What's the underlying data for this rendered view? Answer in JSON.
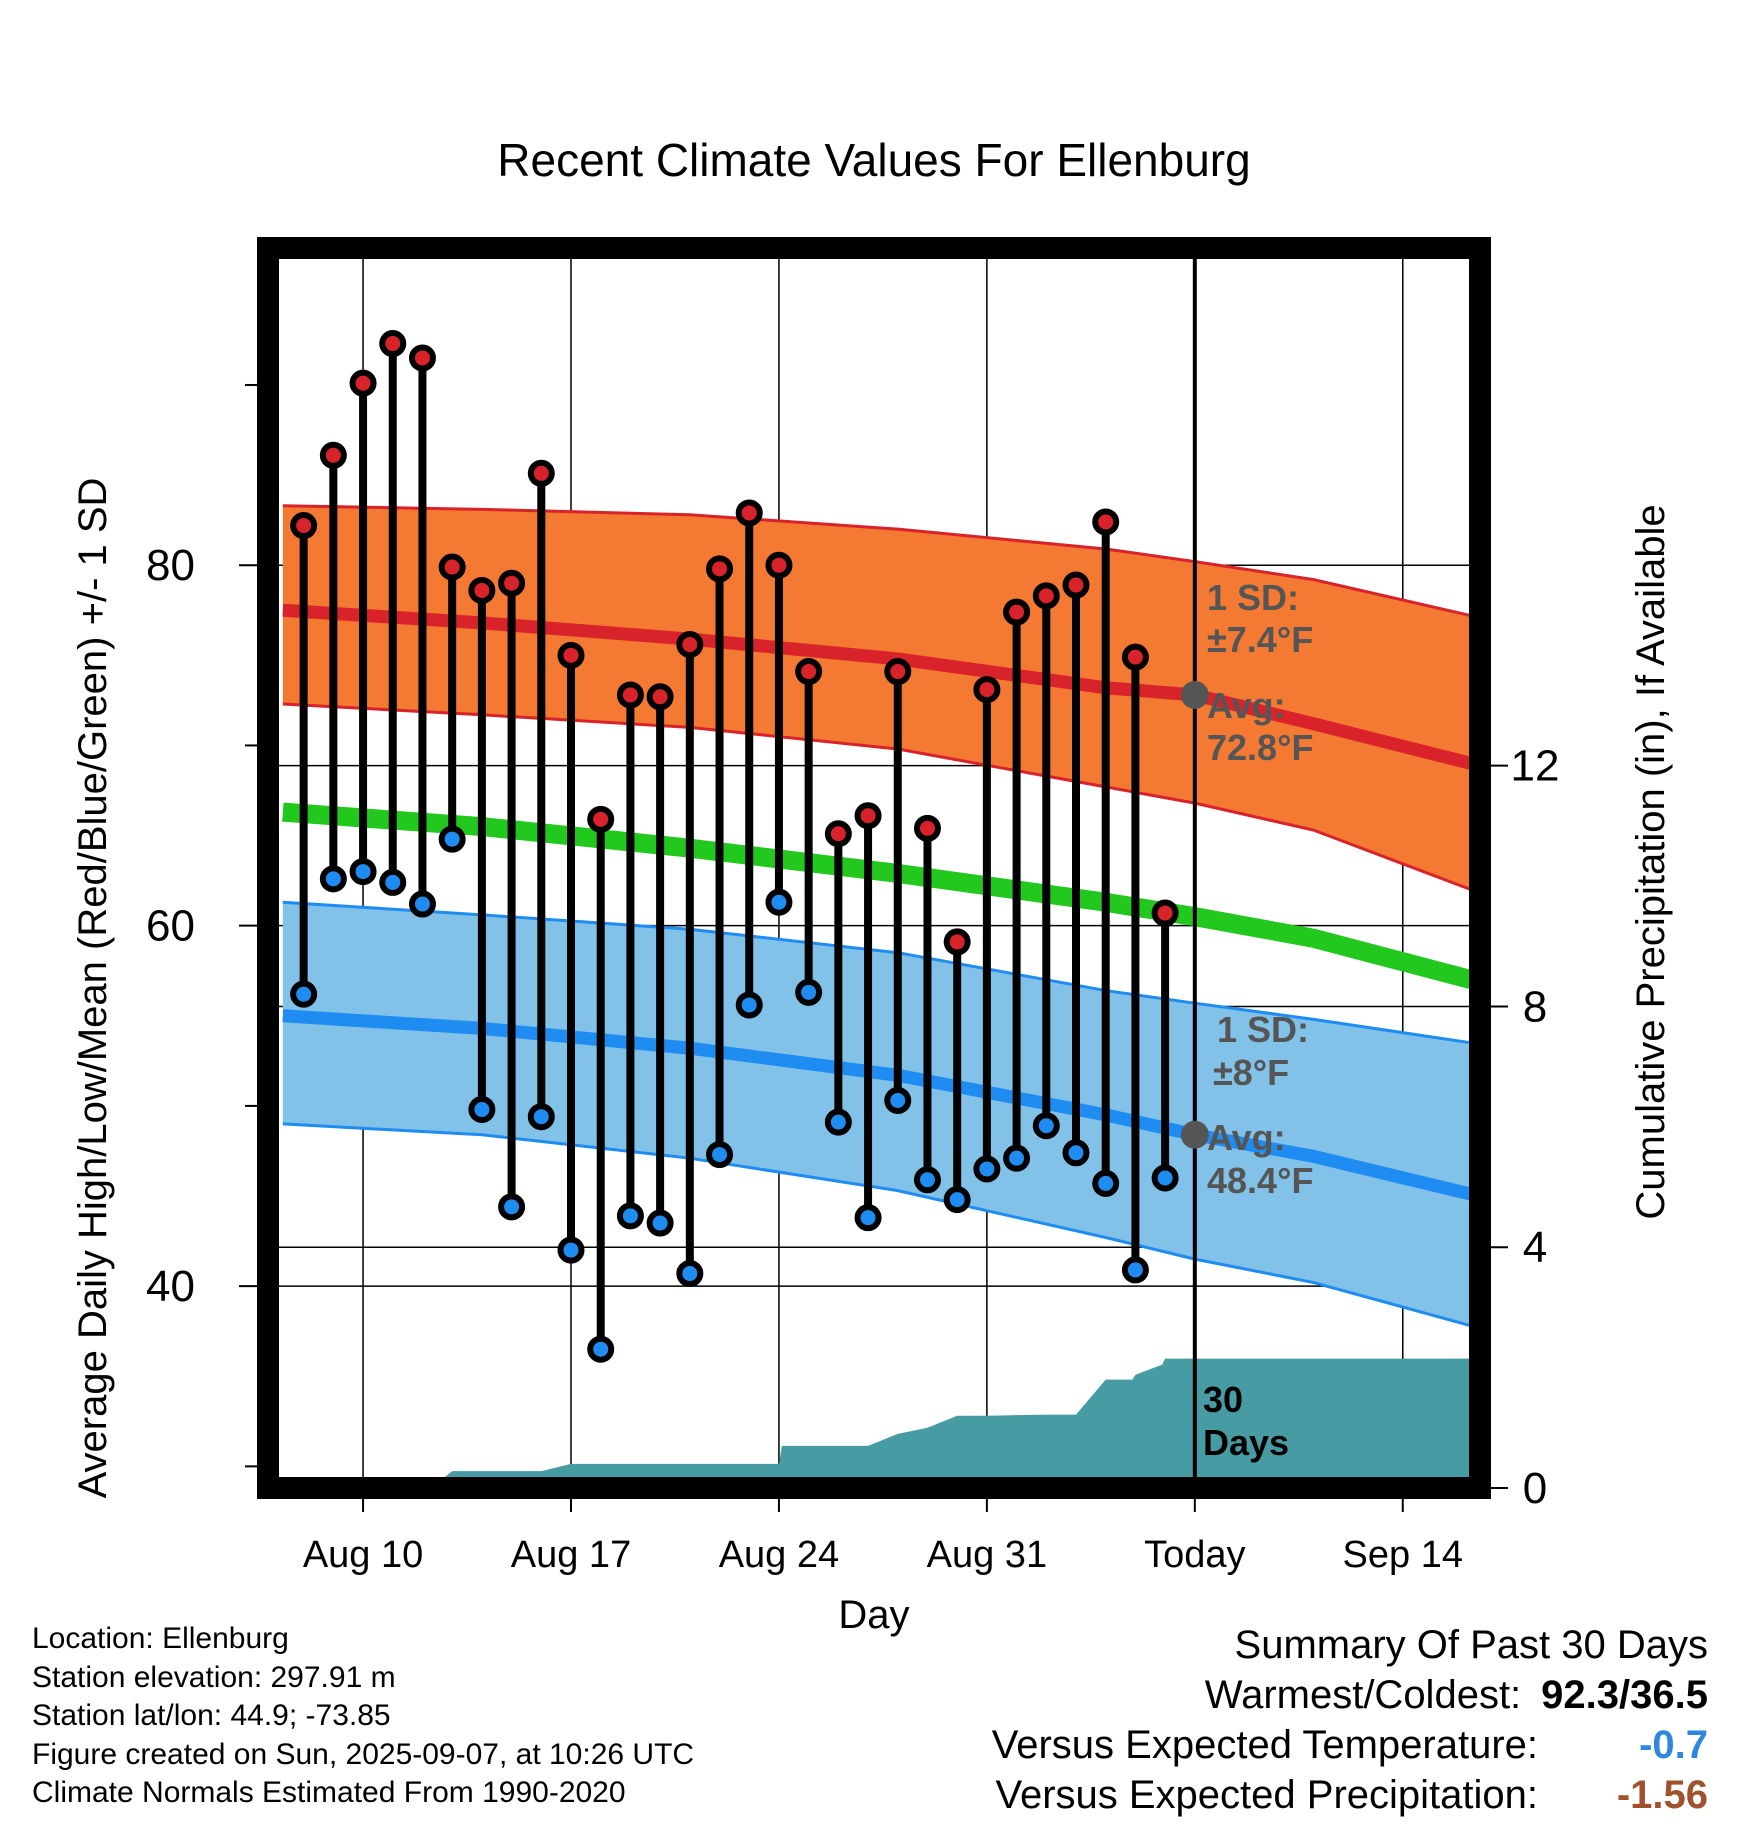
{
  "chart_data": {
    "type": "line",
    "title": "Recent Climate Values For Ellenburg",
    "xlabel": "Day",
    "ylabel": "Average Daily High/Low/Mean (Red/Blue/Green) +/- 1 SD",
    "ylabel_right": "Cumulative Precipitation (in), If Available",
    "x_ticks": [
      "Aug 10",
      "Aug 17",
      "Aug 24",
      "Aug 31",
      "Today",
      "Sep 14"
    ],
    "x_tick_days": [
      10,
      17,
      24,
      31,
      38,
      45
    ],
    "xlim": [
      6.8,
      47.6
    ],
    "ylim": [
      28.8,
      97.6
    ],
    "y_ticks": [
      40,
      60,
      80
    ],
    "ylim_right": [
      0,
      20.6
    ],
    "y_ticks_right": [
      0,
      4,
      8,
      12
    ],
    "today_day": 38,
    "grid": true,
    "normals": {
      "days": [
        7.3,
        14,
        21,
        28,
        35,
        38,
        42,
        47.3
      ],
      "high_avg": [
        77.5,
        76.8,
        75.9,
        74.8,
        73.2,
        72.8,
        71.2,
        69.0
      ],
      "high_upper": [
        83.3,
        83.1,
        82.8,
        82.0,
        80.9,
        80.2,
        79.2,
        77.2
      ],
      "high_lower": [
        72.3,
        71.7,
        71.0,
        69.8,
        67.7,
        66.8,
        65.3,
        62.0
      ],
      "mean": [
        66.3,
        65.5,
        64.3,
        62.9,
        61.3,
        60.5,
        59.3,
        57.0
      ],
      "low_avg": [
        55.0,
        54.3,
        53.2,
        51.7,
        49.5,
        48.4,
        47.2,
        45.1
      ],
      "low_upper": [
        61.3,
        60.6,
        59.8,
        58.5,
        56.4,
        55.7,
        54.8,
        53.5
      ],
      "low_lower": [
        49.0,
        48.4,
        47.1,
        45.3,
        42.7,
        41.5,
        40.2,
        37.8
      ]
    },
    "series": [
      {
        "days": [
          8,
          9,
          10,
          11,
          12,
          13,
          14,
          15,
          16,
          17,
          18,
          19,
          20,
          21,
          22,
          23,
          24,
          25,
          26,
          27,
          28,
          29,
          30,
          31,
          32,
          33,
          34,
          35,
          36,
          37
        ],
        "highs": [
          82.2,
          86.1,
          90.1,
          92.3,
          91.5,
          79.9,
          78.6,
          79.0,
          85.1,
          75.0,
          65.9,
          72.8,
          72.7,
          75.6,
          79.8,
          82.9,
          80.0,
          74.1,
          65.1,
          66.1,
          74.1,
          65.4,
          59.1,
          73.1,
          77.4,
          78.3,
          78.9,
          82.4,
          74.9,
          60.7
        ],
        "lows": [
          56.2,
          62.6,
          63.0,
          62.4,
          61.2,
          64.8,
          49.8,
          44.4,
          49.4,
          42.0,
          36.5,
          43.9,
          43.5,
          40.7,
          47.3,
          55.6,
          61.3,
          56.3,
          49.1,
          43.8,
          50.3,
          45.9,
          44.8,
          46.5,
          47.1,
          48.9,
          47.4,
          45.7,
          40.9,
          46.0
        ]
      }
    ],
    "precip": {
      "days": [
        12.3,
        13,
        16,
        17,
        24,
        24.1,
        27,
        28,
        29,
        30,
        31,
        33,
        34,
        35,
        35.9,
        36,
        36.9,
        37,
        47.3
      ],
      "values": [
        0.0,
        0.28,
        0.28,
        0.4,
        0.4,
        0.7,
        0.7,
        0.9,
        1.0,
        1.2,
        1.2,
        1.22,
        1.22,
        1.8,
        1.8,
        1.88,
        2.05,
        2.15,
        2.15
      ]
    },
    "annotations": {
      "high_sd": "1 SD:",
      "high_sd_value": "±7.4°F",
      "high_avg_label": "Avg:",
      "high_avg_value": "72.8°F",
      "low_sd": "1 SD:",
      "low_sd_value": "±8°F",
      "low_avg_label": "Avg:",
      "low_avg_value": "48.4°F",
      "days_label_1": "30",
      "days_label_2": "Days"
    }
  },
  "colors": {
    "high": "#d8232a",
    "high_band": "#f47932",
    "mean": "#22c81d",
    "low": "#1e8cf0",
    "low_band": "#82c1e8",
    "precip": "#479ca4",
    "annotation": "#555555",
    "positive": "#2e86de",
    "negative": "#a0522d"
  },
  "footer": {
    "location": "Location: Ellenburg",
    "elevation": "Station elevation: 297.91 m",
    "latlon": "Station lat/lon: 44.9; -73.85",
    "created": "Figure created on Sun, 2025-09-07, at 10:26 UTC",
    "normals": "Climate Normals Estimated From 1990-2020"
  },
  "summary": {
    "title": "Summary Of Past 30 Days",
    "warmest_coldest_label": "Warmest/Coldest:",
    "warmest_coldest_value": "92.3/36.5",
    "temp_label": "Versus Expected Temperature:",
    "temp_value": "-0.7",
    "precip_label": "Versus Expected Precipitation:",
    "precip_value": "-1.56"
  }
}
